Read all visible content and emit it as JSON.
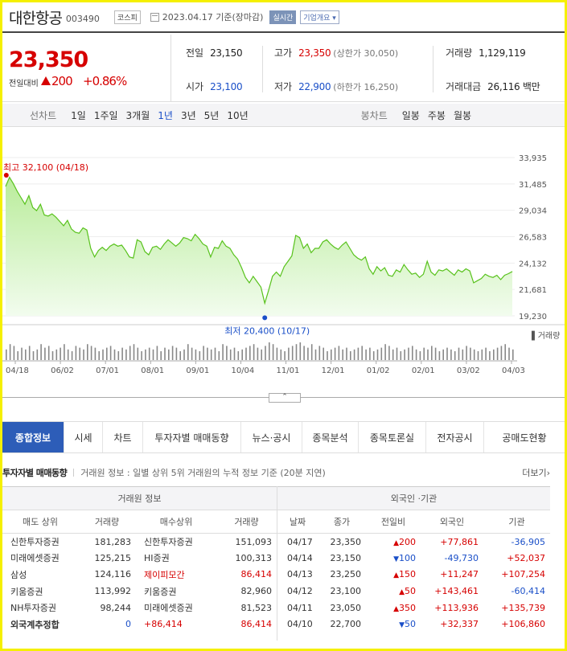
{
  "header": {
    "name": "대한항공",
    "code": "003490",
    "market": "코스피",
    "date": "2023.04.17 기준(장마감)",
    "realtime": "실시간",
    "corp_info": "기업개요"
  },
  "price": {
    "current": "23,350",
    "prev_label": "전일대비",
    "change": "200",
    "pct": "+0.86%"
  },
  "stats": {
    "prev": {
      "k": "전일",
      "v": "23,150"
    },
    "high": {
      "k": "고가",
      "v": "23,350",
      "sub": "(상한가 30,050)"
    },
    "volume": {
      "k": "거래량",
      "v": "1,129,119"
    },
    "open": {
      "k": "시가",
      "v": "23,100"
    },
    "low": {
      "k": "저가",
      "v": "22,900",
      "sub": "(하한가 16,250)"
    },
    "amount": {
      "k": "거래대금",
      "v": "26,116 백만"
    }
  },
  "periods": {
    "line_label": "선차트",
    "items": [
      "1일",
      "1주일",
      "3개월",
      "1년",
      "3년",
      "5년",
      "10년"
    ],
    "active": "1년",
    "candle_label": "봉차트",
    "candle_items": [
      "일봉",
      "주봉",
      "월봉"
    ]
  },
  "chart_data": {
    "type": "area",
    "yticks": [
      "33,935",
      "31,485",
      "29,034",
      "26,583",
      "24,132",
      "21,681",
      "19,230"
    ],
    "ylim": [
      19230,
      33935
    ],
    "xticks": [
      "04/18",
      "06/02",
      "07/01",
      "08/01",
      "09/01",
      "10/04",
      "11/01",
      "12/01",
      "01/02",
      "02/01",
      "03/02",
      "04/03"
    ],
    "high_label": "최고 32,100 (04/18)",
    "low_label": "최저 20,400 (10/17)",
    "volume_label": "거래량",
    "values": [
      31250,
      32100,
      31500,
      30800,
      30200,
      29600,
      30400,
      29300,
      29000,
      29600,
      28600,
      28500,
      28700,
      28400,
      28000,
      27600,
      28100,
      27300,
      27000,
      26900,
      27400,
      27200,
      25500,
      24700,
      25300,
      25600,
      25300,
      25700,
      25900,
      25700,
      25800,
      25300,
      24700,
      24600,
      26300,
      26100,
      25200,
      24900,
      25600,
      25700,
      25400,
      25900,
      26300,
      26000,
      25700,
      26000,
      26500,
      26400,
      26200,
      26800,
      26400,
      25900,
      25700,
      24700,
      25600,
      25500,
      26200,
      25700,
      25500,
      24900,
      24500,
      23700,
      22800,
      22300,
      22900,
      22400,
      21900,
      20400,
      21600,
      22900,
      23300,
      22900,
      23800,
      24300,
      24800,
      26700,
      26500,
      25500,
      25900,
      25100,
      25500,
      25500,
      26100,
      26300,
      25900,
      25600,
      25400,
      25800,
      26100,
      25500,
      24900,
      24600,
      24400,
      24700,
      23600,
      23100,
      23800,
      23400,
      23700,
      23000,
      22900,
      23500,
      23300,
      24000,
      23500,
      23100,
      23200,
      22800,
      23100,
      24300,
      23300,
      23000,
      23500,
      23400,
      23600,
      23300,
      23000,
      23500,
      23300,
      23600,
      23400,
      22300,
      22500,
      22700,
      23100,
      22900,
      22800,
      23000,
      22600,
      23000,
      23150,
      23350
    ],
    "volume": [
      6,
      9,
      8,
      5,
      7,
      6,
      8,
      5,
      6,
      9,
      7,
      8,
      5,
      6,
      7,
      9,
      6,
      5,
      8,
      7,
      6,
      9,
      8,
      7,
      5,
      6,
      7,
      8,
      6,
      5,
      7,
      6,
      8,
      9,
      7,
      5,
      6,
      7,
      6,
      8,
      5,
      7,
      6,
      8,
      7,
      5,
      6,
      9,
      7,
      6,
      5,
      8,
      7,
      6,
      7,
      5,
      9,
      8,
      6,
      7,
      5,
      6,
      7,
      8,
      9,
      7,
      6,
      8,
      10,
      9,
      7,
      6,
      5,
      7,
      8,
      9,
      10,
      8,
      7,
      9,
      6,
      8,
      7,
      5,
      6,
      7,
      8,
      6,
      7,
      5,
      6,
      7,
      8,
      6,
      7,
      5,
      6,
      7,
      9,
      8,
      6,
      7,
      5,
      6,
      7,
      8,
      6,
      5,
      7,
      6,
      8,
      7,
      5,
      6,
      7,
      6,
      5,
      7,
      6,
      8,
      7,
      6,
      5,
      6,
      7,
      5,
      6,
      7,
      8,
      9,
      7,
      6
    ]
  },
  "tabs": [
    "종합정보",
    "시세",
    "차트",
    "투자자별 매매동향",
    "뉴스·공시",
    "종목분석",
    "종목토론실",
    "전자공시",
    "공매도현황"
  ],
  "section": {
    "title": "투자자별 매매동향",
    "desc": "거래원 정보 : 일별 상위 5위 거래원의 누적 정보 기준 (20분 지연)",
    "more": "더보기"
  },
  "broker": {
    "group_title": "거래원 정보",
    "cols": [
      "매도 상위",
      "거래량",
      "매수상위",
      "거래량"
    ],
    "rows": [
      {
        "sell": "신한투자증권",
        "sv": "181,283",
        "buy": "신한투자증권",
        "bv": "151,093",
        "hl": false
      },
      {
        "sell": "미래에셋증권",
        "sv": "125,215",
        "buy": "HI증권",
        "bv": "100,313",
        "hl": false
      },
      {
        "sell": "삼성",
        "sv": "124,116",
        "buy": "제이피모간",
        "bv": "86,414",
        "hl": true
      },
      {
        "sell": "키움증권",
        "sv": "113,992",
        "buy": "키움증권",
        "bv": "82,960",
        "hl": false
      },
      {
        "sell": "NH투자증권",
        "sv": "98,244",
        "buy": "미래에셋증권",
        "bv": "81,523",
        "hl": false
      }
    ],
    "total": {
      "label": "외국계추정합",
      "sv": "0",
      "buy": "+86,414",
      "bv": "86,414"
    }
  },
  "foreign": {
    "group_title": "외국인 ·기관",
    "cols": [
      "날짜",
      "종가",
      "전일비",
      "외국인",
      "기관"
    ],
    "rows": [
      {
        "d": "04/17",
        "c": "23,350",
        "dir": "up",
        "ch": "200",
        "f": "+77,861",
        "i": "-36,905"
      },
      {
        "d": "04/14",
        "c": "23,150",
        "dir": "dn",
        "ch": "100",
        "f": "-49,730",
        "i": "+52,037"
      },
      {
        "d": "04/13",
        "c": "23,250",
        "dir": "up",
        "ch": "150",
        "f": "+11,247",
        "i": "+107,254"
      },
      {
        "d": "04/12",
        "c": "23,100",
        "dir": "up",
        "ch": "50",
        "f": "+143,461",
        "i": "-60,414"
      },
      {
        "d": "04/11",
        "c": "23,050",
        "dir": "up",
        "ch": "350",
        "f": "+113,936",
        "i": "+135,739"
      },
      {
        "d": "04/10",
        "c": "22,700",
        "dir": "dn",
        "ch": "50",
        "f": "+32,337",
        "i": "+106,860"
      }
    ]
  }
}
